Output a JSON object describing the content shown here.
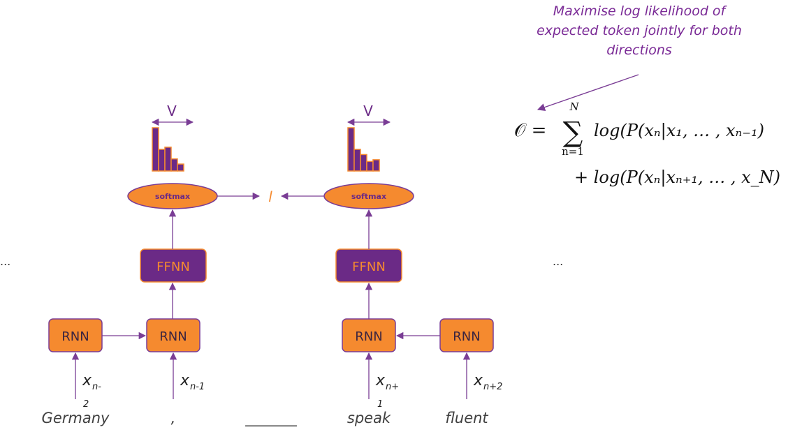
{
  "annotation": {
    "lines": [
      "Maximise log likelihood of",
      "expected token jointly for both",
      "directions"
    ]
  },
  "formula": {
    "lhs": "𝒪 =",
    "sum_upper": "N",
    "sum_lower": "n=1",
    "sum_symbol": "∑",
    "term1": "log(P(x_n|x_1,…,x_{n−1})",
    "term1_display": "log(P(xₙ|x₁, … , xₙ₋₁)",
    "term2_display": "+ log(P(xₙ|xₙ₊₁, … , x_N)"
  },
  "left_branch": {
    "v_label": "V",
    "softmax_label": "softmax",
    "ffnn_label": "FFNN",
    "rnn_labels": [
      "RNN",
      "RNN"
    ]
  },
  "right_branch": {
    "v_label": "V",
    "softmax_label": "softmax",
    "ffnn_label": "FFNN",
    "rnn_labels": [
      "RNN",
      "RNN"
    ]
  },
  "loss_glyph": "l",
  "inputs": [
    {
      "var": "x",
      "sub": "n-",
      "sub_line2": "2",
      "word": "Germany"
    },
    {
      "var": "x",
      "sub": "n-1",
      "sub_line2": "",
      "word": ","
    },
    {
      "var": "",
      "sub": "",
      "sub_line2": "",
      "word": "_______"
    },
    {
      "var": "x",
      "sub": "n+",
      "sub_line2": "1",
      "word": "speak"
    },
    {
      "var": "x",
      "sub": "n+2",
      "sub_line2": "",
      "word": "fluent"
    }
  ],
  "ellipsis_left": "...",
  "ellipsis_right": "...",
  "histogram_left": [
    1.0,
    0.5,
    0.55,
    0.28,
    0.16
  ],
  "histogram_right": [
    1.0,
    0.5,
    0.38,
    0.22,
    0.26
  ],
  "colors": {
    "orange": "#f58a2f",
    "purple": "#6b2a86",
    "purple_line": "#7a3d95"
  }
}
